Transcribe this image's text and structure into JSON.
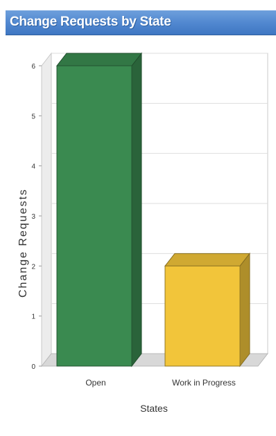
{
  "window": {
    "title": "Change Requests by State"
  },
  "colors": {
    "title_bar": "#4f86cf",
    "open": "#3a8a50",
    "work_in_progress": "#f2c53a"
  },
  "chart_data": {
    "type": "bar",
    "title": "Change Requests by State",
    "xlabel": "States",
    "ylabel": "Change Requests",
    "categories": [
      "Open",
      "Work in Progress"
    ],
    "values": [
      6,
      2
    ],
    "ylim": [
      0,
      6
    ],
    "yticks": [
      "0",
      "1",
      "2",
      "3",
      "4",
      "5",
      "6"
    ],
    "grid": true,
    "legend": "none",
    "style": "3d"
  }
}
